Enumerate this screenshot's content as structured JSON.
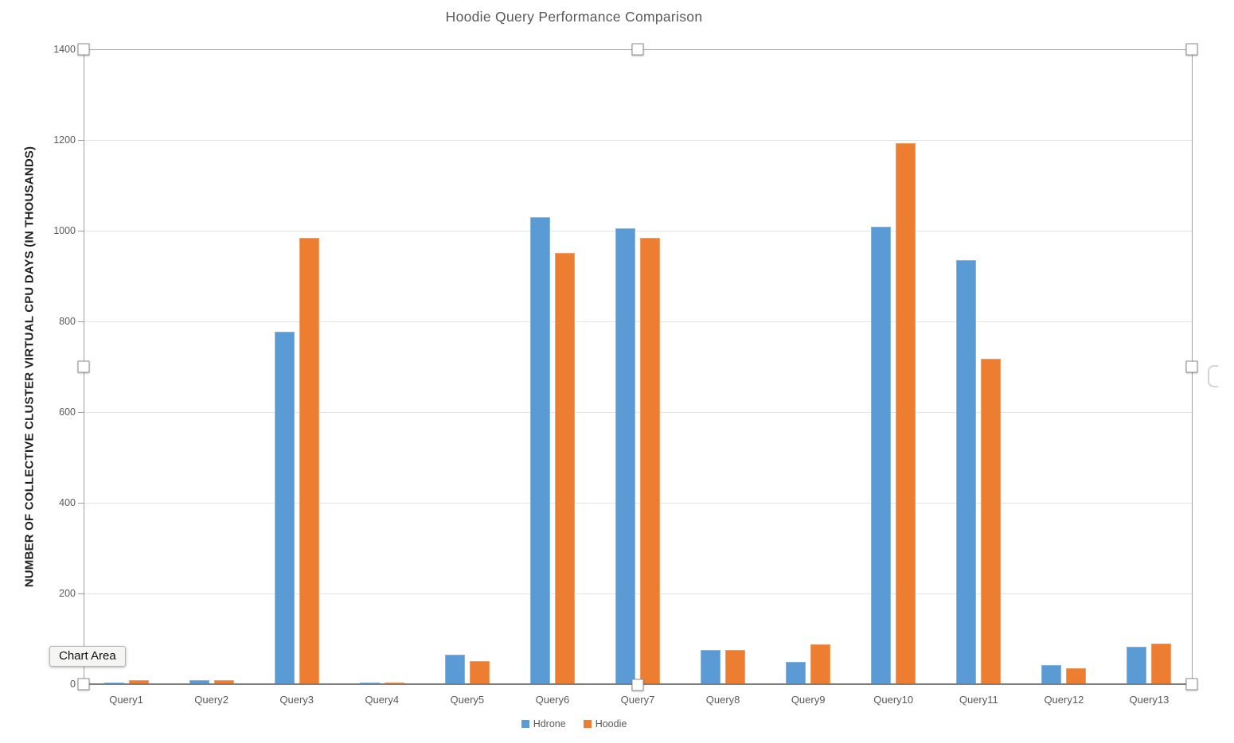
{
  "selection": {
    "tooltip": "Chart Area"
  },
  "chart_data": {
    "type": "bar",
    "title": "Hoodie Query Performance Comparison",
    "xlabel": "",
    "ylabel": "NUMBER OF COLLECTIVE CLUSTER VIRTUAL CPU DAYS (IN THOUSANDS)",
    "categories": [
      "Query1",
      "Query2",
      "Query3",
      "Query4",
      "Query5",
      "Query6",
      "Query7",
      "Query8",
      "Query9",
      "Query10",
      "Query11",
      "Query12",
      "Query13"
    ],
    "series": [
      {
        "name": "Hdrone",
        "color": "#5B9BD5",
        "values": [
          4,
          8,
          777,
          4,
          65,
          1030,
          1005,
          75,
          49,
          1009,
          935,
          42,
          82
        ]
      },
      {
        "name": "Hoodie",
        "color": "#ED7D31",
        "values": [
          8,
          8,
          984,
          4,
          51,
          951,
          984,
          75,
          88,
          1193,
          718,
          35,
          90
        ]
      }
    ],
    "ylim": [
      0,
      1400
    ],
    "ytick_interval": 200,
    "grid": true,
    "legend_position": "bottom"
  }
}
